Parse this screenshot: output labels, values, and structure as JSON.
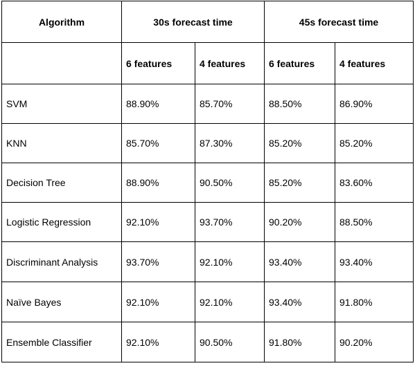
{
  "table": {
    "header": {
      "algorithm": "Algorithm",
      "group_30s": "30s forecast time",
      "group_45s": "45s forecast time",
      "sub_headers": [
        "6 features",
        "4 features",
        "6 features",
        "4 features"
      ]
    },
    "rows": [
      {
        "name": "SVM",
        "values": [
          "88.90%",
          "85.70%",
          "88.50%",
          "86.90%"
        ]
      },
      {
        "name": "KNN",
        "values": [
          "85.70%",
          "87.30%",
          "85.20%",
          "85.20%"
        ]
      },
      {
        "name": "Decision Tree",
        "values": [
          "88.90%",
          "90.50%",
          "85.20%",
          "83.60%"
        ]
      },
      {
        "name": "Logistic Regression",
        "values": [
          "92.10%",
          "93.70%",
          "90.20%",
          "88.50%"
        ]
      },
      {
        "name": "Discriminant Analysis",
        "values": [
          "93.70%",
          "92.10%",
          "93.40%",
          "93.40%"
        ]
      },
      {
        "name": "Naïve Bayes",
        "values": [
          "92.10%",
          "92.10%",
          "93.40%",
          "91.80%"
        ]
      },
      {
        "name": "Ensemble Classifier",
        "values": [
          "92.10%",
          "90.50%",
          "91.80%",
          "90.20%"
        ]
      }
    ]
  }
}
